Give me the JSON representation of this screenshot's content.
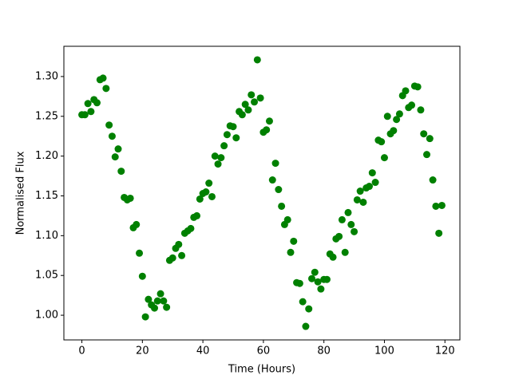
{
  "chart_data": {
    "type": "scatter",
    "x_label": "Time (Hours)",
    "y_label": "Normalised Flux",
    "x": [
      0,
      1,
      2,
      3,
      4,
      5,
      6,
      7,
      8,
      9,
      10,
      11,
      12,
      13,
      14,
      15,
      16,
      17,
      18,
      19,
      20,
      21,
      22,
      23,
      24,
      25,
      26,
      27,
      28,
      29,
      30,
      31,
      32,
      33,
      34,
      35,
      36,
      37,
      38,
      39,
      40,
      41,
      42,
      43,
      44,
      45,
      46,
      47,
      48,
      49,
      50,
      51,
      52,
      53,
      54,
      55,
      56,
      57,
      58,
      59,
      60,
      61,
      62,
      63,
      64,
      65,
      66,
      67,
      68,
      69,
      70,
      71,
      72,
      73,
      74,
      75,
      76,
      77,
      78,
      79,
      80,
      81,
      82,
      83,
      84,
      85,
      86,
      87,
      88,
      89,
      90,
      91,
      92,
      93,
      94,
      95,
      96,
      97,
      98,
      99,
      100,
      101,
      102,
      103,
      104,
      105,
      106,
      107,
      108,
      109,
      110,
      111,
      112,
      113,
      114,
      115,
      116,
      117,
      118,
      119
    ],
    "values": [
      1.252,
      1.252,
      1.266,
      1.256,
      1.271,
      1.267,
      1.296,
      1.298,
      1.285,
      1.239,
      1.225,
      1.199,
      1.209,
      1.181,
      1.148,
      1.145,
      1.147,
      1.11,
      1.114,
      1.078,
      1.049,
      0.998,
      1.02,
      1.013,
      1.009,
      1.018,
      1.027,
      1.018,
      1.01,
      1.069,
      1.072,
      1.084,
      1.089,
      1.075,
      1.103,
      1.106,
      1.109,
      1.123,
      1.125,
      1.146,
      1.153,
      1.155,
      1.166,
      1.149,
      1.2,
      1.19,
      1.198,
      1.213,
      1.227,
      1.238,
      1.237,
      1.223,
      1.256,
      1.252,
      1.265,
      1.258,
      1.277,
      1.268,
      1.321,
      1.273,
      1.23,
      1.233,
      1.244,
      1.17,
      1.191,
      1.158,
      1.137,
      1.114,
      1.12,
      1.079,
      1.093,
      1.041,
      1.04,
      1.017,
      0.986,
      1.008,
      1.046,
      1.054,
      1.042,
      1.033,
      1.045,
      1.045,
      1.077,
      1.073,
      1.096,
      1.099,
      1.12,
      1.079,
      1.129,
      1.114,
      1.105,
      1.145,
      1.156,
      1.142,
      1.16,
      1.162,
      1.179,
      1.167,
      1.22,
      1.218,
      1.198,
      1.25,
      1.228,
      1.232,
      1.246,
      1.253,
      1.276,
      1.282,
      1.261,
      1.264,
      1.288,
      1.287,
      1.258,
      1.228,
      1.202,
      1.222,
      1.17,
      1.137,
      1.103,
      1.138
    ],
    "color": "#008000",
    "xlim": [
      -5.95,
      124.95
    ],
    "xticks": [
      0,
      20,
      40,
      60,
      80,
      100,
      120
    ],
    "ylim": [
      0.969,
      1.338
    ],
    "yticks": [
      {
        "value": 1.0,
        "label": "1.00"
      },
      1.05,
      {
        "value": 1.1,
        "label": "1.10"
      },
      1.15,
      {
        "value": 1.2,
        "label": "1.20"
      },
      1.25,
      {
        "value": 1.3,
        "label": "1.30"
      }
    ]
  }
}
